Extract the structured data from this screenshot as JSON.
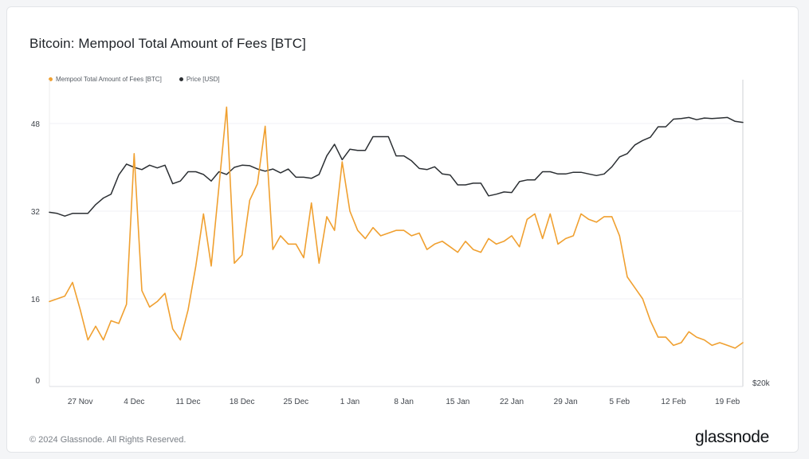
{
  "title": "Bitcoin: Mempool Total Amount of Fees [BTC]",
  "footer": "© 2024 Glassnode. All Rights Reserved.",
  "brand": "glassnode",
  "chart_data": {
    "type": "line",
    "title": "Bitcoin: Mempool Total Amount of Fees [BTC]",
    "xlabel": "",
    "ylabel": "",
    "ylim": [
      0,
      56
    ],
    "yticks": [
      0,
      16,
      32,
      48
    ],
    "right_axis_label": "$20k",
    "grid": true,
    "legend_position": "top-left",
    "x_start": "23 Nov",
    "x_end": "21 Feb",
    "x_tick_labels": [
      "27 Nov",
      "4 Dec",
      "11 Dec",
      "18 Dec",
      "25 Dec",
      "1 Jan",
      "8 Jan",
      "15 Jan",
      "22 Jan",
      "29 Jan",
      "5 Feb",
      "12 Feb",
      "19 Feb"
    ],
    "series": [
      {
        "name": "Mempool Total Amount of Fees [BTC]",
        "color": "#f0a030",
        "values": [
          15.5,
          16,
          16.5,
          19,
          14,
          8.5,
          11,
          8.5,
          12,
          11.5,
          15,
          42.5,
          17.5,
          14.5,
          15.5,
          17,
          10.5,
          8.5,
          14,
          22,
          31.5,
          22,
          36.5,
          51,
          22.5,
          24,
          34,
          37,
          47.5,
          25,
          27.5,
          26,
          26,
          23.5,
          33.5,
          22.5,
          31,
          28.5,
          41,
          32,
          28.5,
          27,
          29,
          27.5,
          28,
          28.5,
          28.5,
          27.5,
          28,
          25,
          26,
          26.5,
          25.5,
          24.5,
          26.5,
          25,
          24.5,
          27,
          26,
          26.5,
          27.5,
          25.5,
          30.5,
          31.5,
          27,
          31.5,
          26,
          27,
          27.5,
          31.5,
          30.5,
          30,
          31,
          31,
          27.5,
          20,
          18,
          16,
          12,
          9,
          9,
          7.5,
          8,
          10,
          9,
          8.5,
          7.5,
          8,
          7.5,
          7,
          8
        ]
      },
      {
        "name": "Price [USD]",
        "color": "#2b2f33",
        "values": [
          31.8,
          31.6,
          31.1,
          31.6,
          31.6,
          31.6,
          33.2,
          34.4,
          35.1,
          38.6,
          40.6,
          40,
          39.6,
          40.4,
          39.9,
          40.4,
          37,
          37.5,
          39.2,
          39.2,
          38.7,
          37.5,
          39.2,
          38.7,
          40,
          40.4,
          40.3,
          39.7,
          39.3,
          39.7,
          39,
          39.7,
          38.2,
          38.2,
          38,
          38.7,
          42.1,
          44.2,
          41.4,
          43.3,
          43.1,
          43.1,
          45.6,
          45.6,
          45.6,
          42.1,
          42.1,
          41.2,
          39.8,
          39.6,
          40.1,
          38.8,
          38.6,
          36.8,
          36.8,
          37.1,
          37.1,
          34.8,
          35.1,
          35.5,
          35.4,
          37.4,
          37.7,
          37.7,
          39.2,
          39.2,
          38.8,
          38.8,
          39.1,
          39.1,
          38.8,
          38.5,
          38.8,
          40.1,
          41.9,
          42.5,
          44.1,
          44.9,
          45.5,
          47.4,
          47.4,
          48.8,
          48.9,
          49.1,
          48.7,
          49,
          48.9,
          49,
          49.1,
          48.4,
          48.2
        ]
      }
    ]
  }
}
